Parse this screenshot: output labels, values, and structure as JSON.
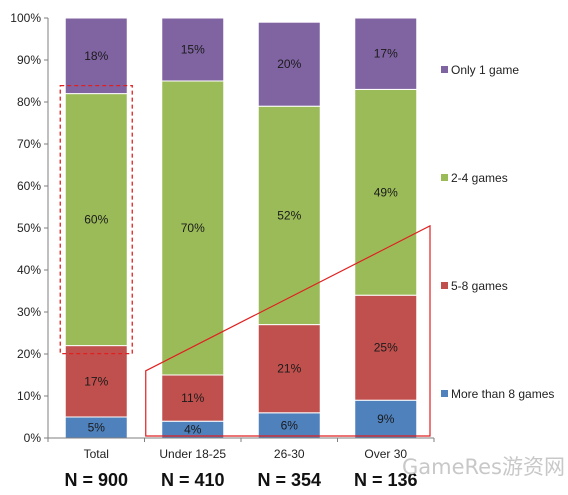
{
  "chart_data": {
    "type": "bar",
    "stacked": true,
    "categories": [
      "Total",
      "Under 18-25",
      "26-30",
      "Over 30"
    ],
    "n_labels": [
      "N = 900",
      "N = 410",
      "N = 354",
      "N = 136"
    ],
    "series": [
      {
        "name": "More than 8 games",
        "values": [
          5,
          4,
          6,
          9
        ],
        "labels": [
          "5%",
          "4%",
          "6%",
          "9%"
        ],
        "color": "#4f81bd"
      },
      {
        "name": "5-8 games",
        "values": [
          17,
          11,
          21,
          25
        ],
        "labels": [
          "17%",
          "11%",
          "21%",
          "25%"
        ],
        "color": "#c0504d"
      },
      {
        "name": "2-4 games",
        "values": [
          60,
          70,
          52,
          49
        ],
        "labels": [
          "60%",
          "70%",
          "52%",
          "49%"
        ],
        "color": "#9bbb59"
      },
      {
        "name": "Only 1 game",
        "values": [
          18,
          15,
          20,
          17
        ],
        "labels": [
          "18%",
          "15%",
          "20%",
          "17%"
        ],
        "color": "#8064a2"
      }
    ],
    "y_ticks": [
      "0%",
      "10%",
      "20%",
      "30%",
      "40%",
      "50%",
      "60%",
      "70%",
      "80%",
      "90%",
      "100%"
    ],
    "ylim": [
      0,
      100
    ],
    "legend_position": "right",
    "grid": false,
    "annotations": {
      "highlight_color": "#e02020"
    }
  },
  "watermark": "GameRes游资网"
}
